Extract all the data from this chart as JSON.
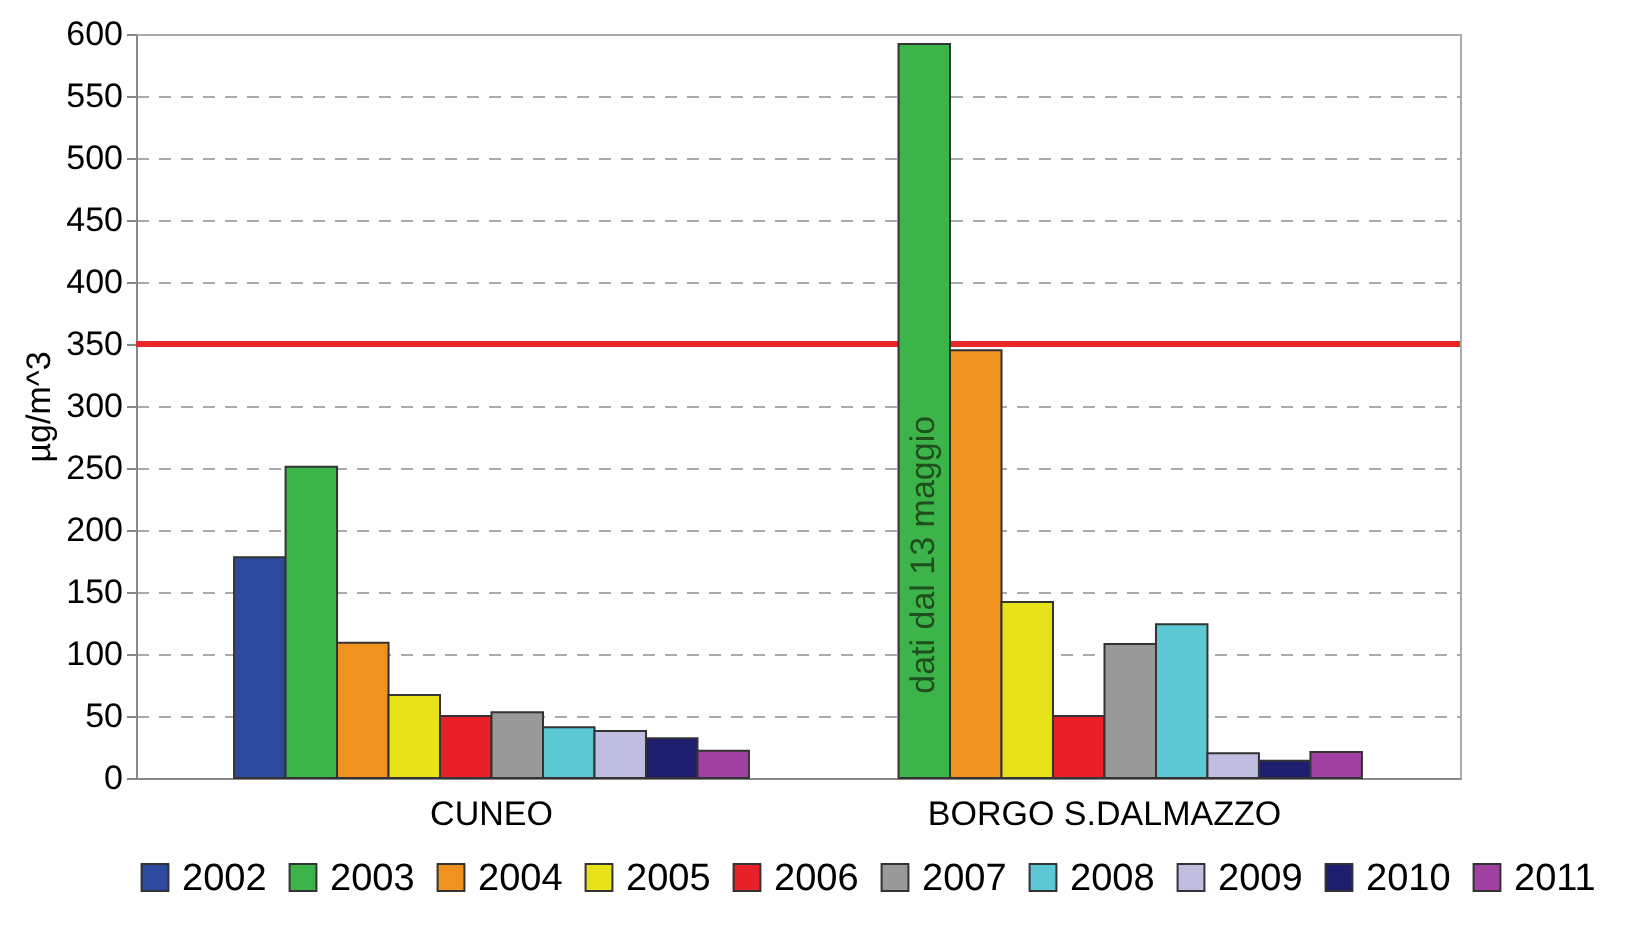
{
  "chart_data": {
    "type": "bar",
    "ylabel": "µg/m^3",
    "categories": [
      "CUNEO",
      "BORGO S.DALMAZZO"
    ],
    "series": [
      {
        "name": "2002",
        "color": "#2e4a9e",
        "values": [
          178,
          null
        ]
      },
      {
        "name": "2003",
        "color": "#3cb44a",
        "values": [
          251,
          592
        ]
      },
      {
        "name": "2004",
        "color": "#f0921e",
        "values": [
          109,
          345
        ]
      },
      {
        "name": "2005",
        "color": "#e8e21a",
        "values": [
          67,
          142
        ]
      },
      {
        "name": "2006",
        "color": "#e8202a",
        "values": [
          50,
          50
        ]
      },
      {
        "name": "2007",
        "color": "#999999",
        "values": [
          53,
          108
        ]
      },
      {
        "name": "2008",
        "color": "#5cc8d4",
        "values": [
          41,
          124
        ]
      },
      {
        "name": "2009",
        "color": "#c0bee0",
        "values": [
          38,
          20
        ]
      },
      {
        "name": "2010",
        "color": "#1e1e6e",
        "values": [
          32,
          14
        ]
      },
      {
        "name": "2011",
        "color": "#a040a0",
        "values": [
          22,
          21
        ]
      }
    ],
    "ylim": [
      0,
      600
    ],
    "yticks": [
      0,
      50,
      100,
      150,
      200,
      250,
      300,
      350,
      400,
      450,
      500,
      550,
      600
    ],
    "grid": "y",
    "legend": "bottom",
    "ref_lines": [
      {
        "axis": "y",
        "value": 350,
        "color": "#e8282a"
      }
    ],
    "annotations": [
      "dati dal 13 maggio"
    ]
  }
}
